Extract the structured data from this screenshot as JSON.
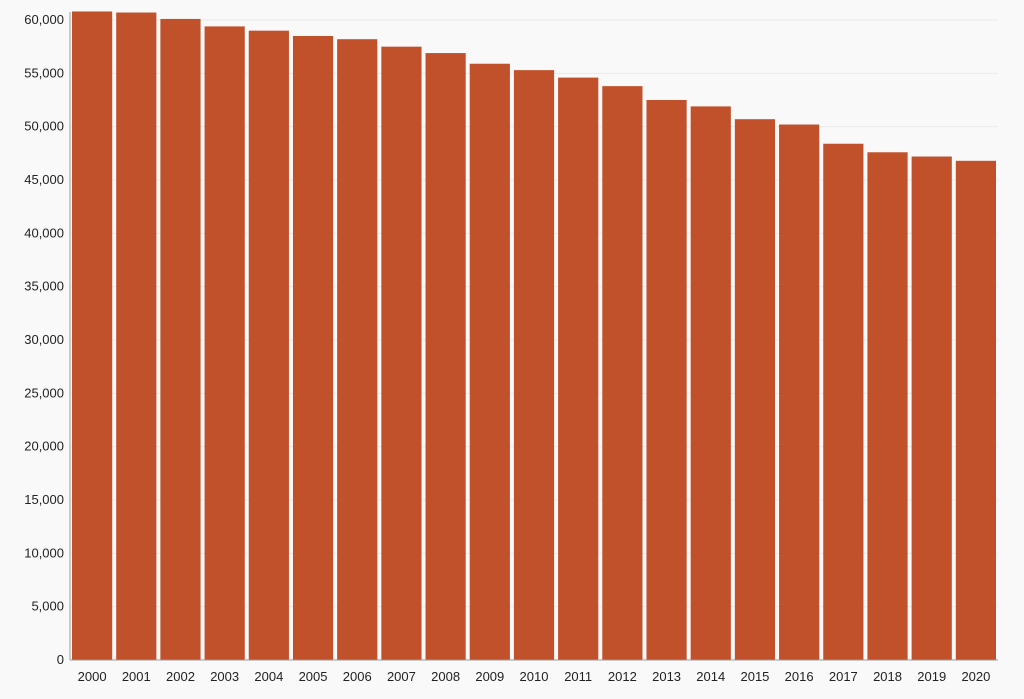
{
  "chart_data": {
    "type": "bar",
    "title": "",
    "xlabel": "",
    "ylabel": "",
    "categories": [
      "2000",
      "2001",
      "2002",
      "2003",
      "2004",
      "2005",
      "2006",
      "2007",
      "2008",
      "2009",
      "2010",
      "2011",
      "2012",
      "2013",
      "2014",
      "2015",
      "2016",
      "2017",
      "2018",
      "2019",
      "2020"
    ],
    "values": [
      60800,
      60700,
      60100,
      59400,
      59000,
      58500,
      58200,
      57500,
      56900,
      55900,
      55300,
      54600,
      53800,
      52500,
      51900,
      50700,
      50200,
      48400,
      47600,
      47200,
      46800
    ],
    "ylim": [
      0,
      60000
    ],
    "yticks": [
      0,
      5000,
      10000,
      15000,
      20000,
      25000,
      30000,
      35000,
      40000,
      45000,
      50000,
      55000,
      60000
    ],
    "ytick_labels": [
      "0",
      "5,000",
      "10,000",
      "15,000",
      "20,000",
      "25,000",
      "30,000",
      "35,000",
      "40,000",
      "45,000",
      "50,000",
      "55,000",
      "60,000"
    ],
    "grid": true,
    "bar_color": "#c0512b"
  }
}
